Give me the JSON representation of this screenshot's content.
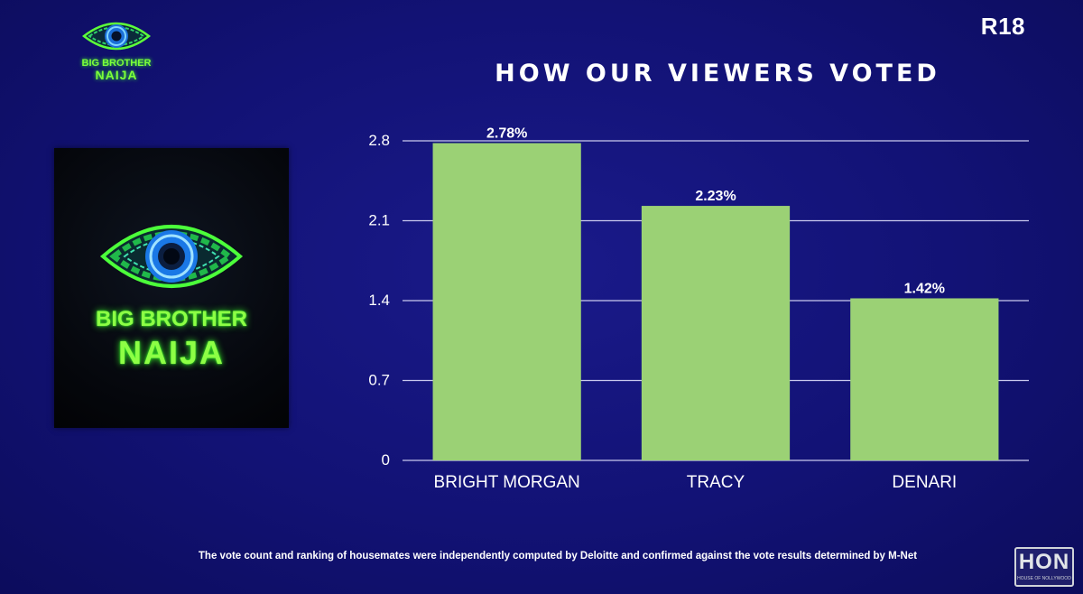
{
  "header": {
    "rating": "R18",
    "logo_line1": "BIG BROTHER",
    "logo_line2": "NAIJA"
  },
  "poster": {
    "line1": "BIG BROTHER",
    "line2": "NAIJA"
  },
  "footnote": "The vote count and ranking of housemates were independently computed by Deloitte and confirmed against the vote results determined by M-Net",
  "watermark": {
    "text": "HON",
    "subtext": "HOUSE OF NOLLYWOOD"
  },
  "colors": {
    "background": "#121275",
    "bar": "#9bd175",
    "grid": "#c9c9ee",
    "logo_green": "#7dff3a",
    "eye_blue": "#1f8fff"
  },
  "icons": {
    "logo": "big-brother-eye-icon"
  },
  "chart_data": {
    "type": "bar",
    "title": "HOW OUR VIEWERS VOTED",
    "categories": [
      "BRIGHT MORGAN",
      "TRACY",
      "DENARI"
    ],
    "values": [
      2.78,
      2.23,
      1.42
    ],
    "data_labels": [
      "2.78%",
      "2.23%",
      "1.42%"
    ],
    "yticks": [
      "0",
      "0.7",
      "1.4",
      "2.1",
      "2.8"
    ],
    "ylim": [
      0,
      2.8
    ],
    "grid": true,
    "legend": "none"
  }
}
